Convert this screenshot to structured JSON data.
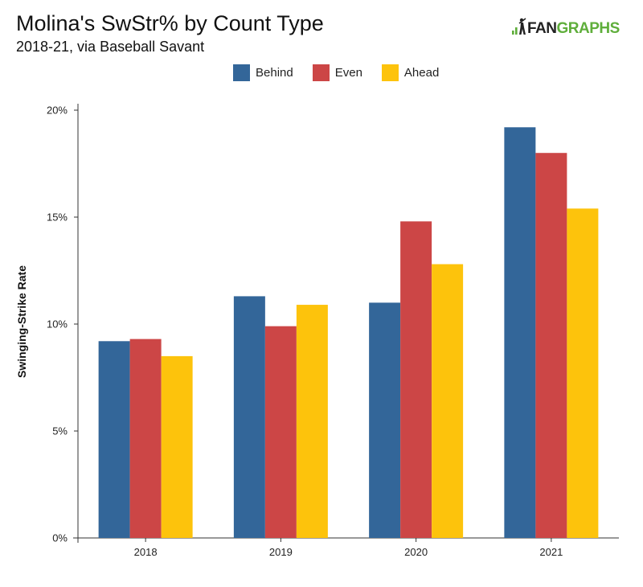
{
  "header": {
    "title": "Molina's SwStr% by Count Type",
    "subtitle": "2018-21, via Baseball Savant",
    "logo_text_dark": "FAN",
    "logo_text_green": "GRAPHS"
  },
  "colors": {
    "Behind": "#336699",
    "Even": "#cc4646",
    "Ahead": "#fdc30c",
    "axis": "#333333",
    "logo_green": "#5fae3b"
  },
  "chart_data": {
    "type": "bar",
    "title": "Molina's SwStr% by Count Type",
    "subtitle": "2018-21, via Baseball Savant",
    "xlabel": "",
    "ylabel": "Swinging-Strike Rate",
    "categories": [
      "2018",
      "2019",
      "2020",
      "2021"
    ],
    "ylim": [
      0,
      20
    ],
    "yticks": [
      0,
      5,
      10,
      15,
      20
    ],
    "ytick_labels": [
      "0%",
      "5%",
      "10%",
      "15%",
      "20%"
    ],
    "legend_position": "top-center",
    "grid": false,
    "series": [
      {
        "name": "Behind",
        "color": "#336699",
        "values": [
          9.2,
          11.3,
          11.0,
          19.2
        ]
      },
      {
        "name": "Even",
        "color": "#cc4646",
        "values": [
          9.3,
          9.9,
          14.8,
          18.0
        ]
      },
      {
        "name": "Ahead",
        "color": "#fdc30c",
        "values": [
          8.5,
          10.9,
          12.8,
          15.4
        ]
      }
    ]
  }
}
